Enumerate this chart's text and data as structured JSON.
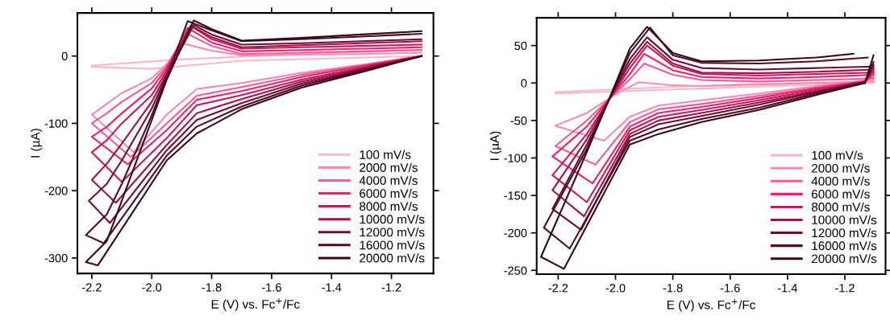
{
  "chart_data": [
    {
      "type": "line",
      "xlabel": "E (V) vs. Fc$^{+}$/Fc",
      "ylabel": "I (µA)",
      "xlim": [
        -2.248,
        -1.06
      ],
      "ylim": [
        -323,
        64
      ],
      "xticks": [
        -2.2,
        {
          "value": -2.0,
          "label": "-2.0"
        },
        -1.8,
        -1.6,
        -1.4,
        -1.2
      ],
      "yticks": [
        0,
        -100,
        -200,
        -300
      ],
      "legend": "bottom right",
      "series": [
        {
          "name": "100 mV/s",
          "color": "#f9b8cf",
          "x": [
            -1.1,
            -1.7,
            -2.0,
            -2.2,
            -2.2,
            -1.9,
            -1.5,
            -1.1
          ],
          "values": [
            0,
            -7,
            -19,
            -16,
            -14,
            -5,
            3,
            9
          ]
        },
        {
          "name": "2000 mV/s",
          "color": "#f58bb0",
          "x": [
            -1.1,
            -1.3,
            -1.5,
            -1.7,
            -1.85,
            -1.95,
            -2.06,
            -2.2,
            -2.15,
            -2.1,
            -2.0,
            -1.95,
            -1.9,
            -1.8,
            -1.7,
            -1.5,
            -1.3,
            -1.1
          ],
          "values": [
            0,
            -13,
            -25,
            -40,
            -49,
            -87,
            -143,
            -87,
            -71,
            -55,
            -33,
            -12,
            19,
            8,
            1,
            2,
            3,
            5
          ]
        },
        {
          "name": "4000 mV/s",
          "color": "#f45a95",
          "x": [
            -1.1,
            -1.3,
            -1.5,
            -1.7,
            -1.85,
            -1.95,
            -2.07,
            -2.2,
            -2.15,
            -2.1,
            -2.0,
            -1.95,
            -1.88,
            -1.8,
            -1.7,
            -1.5,
            -1.3,
            -1.1
          ],
          "values": [
            0,
            -14,
            -28,
            -46,
            -59,
            -100,
            -150,
            -100,
            -85,
            -68,
            -40,
            -15,
            33,
            15,
            3,
            5,
            7,
            9
          ]
        },
        {
          "name": "6000 mV/s",
          "color": "#ee1f73",
          "x": [
            -1.1,
            -1.3,
            -1.5,
            -1.7,
            -1.85,
            -1.95,
            -2.08,
            -2.2,
            -2.15,
            -2.1,
            -2.0,
            -1.95,
            -1.88,
            -1.8,
            -1.7,
            -1.5,
            -1.3,
            -1.1
          ],
          "values": [
            0,
            -15,
            -31,
            -52,
            -65,
            -110,
            -161,
            -120,
            -105,
            -85,
            -48,
            -18,
            42,
            20,
            7,
            9,
            11,
            13
          ]
        },
        {
          "name": "8000 mV/s",
          "color": "#c9165c",
          "x": [
            -1.1,
            -1.3,
            -1.5,
            -1.7,
            -1.85,
            -1.95,
            -2.1,
            -2.2,
            -2.15,
            -2.1,
            -2.0,
            -1.95,
            -1.87,
            -1.8,
            -1.7,
            -1.5,
            -1.3,
            -1.1
          ],
          "values": [
            0,
            -17,
            -35,
            -58,
            -73,
            -122,
            -187,
            -143,
            -125,
            -100,
            -58,
            -22,
            45,
            25,
            11,
            13,
            15,
            17
          ]
        },
        {
          "name": "10000 mV/s",
          "color": "#9e1248",
          "x": [
            -1.1,
            -1.3,
            -1.5,
            -1.7,
            -1.85,
            -1.95,
            -2.12,
            -2.2,
            -2.15,
            -2.1,
            -2.0,
            -1.95,
            -1.87,
            -1.8,
            -1.7,
            -1.5,
            -1.3,
            -1.1
          ],
          "values": [
            0,
            -19,
            -38,
            -64,
            -85,
            -132,
            -218,
            -184,
            -160,
            -130,
            -68,
            -26,
            45,
            28,
            13,
            16,
            19,
            22
          ]
        },
        {
          "name": "12000 mV/s",
          "color": "#700c33",
          "x": [
            -1.1,
            -1.3,
            -1.5,
            -1.7,
            -1.85,
            -1.95,
            -2.14,
            -2.21,
            -2.15,
            -2.1,
            -2.0,
            -1.95,
            -1.86,
            -1.8,
            -1.7,
            -1.5,
            -1.3,
            -1.1
          ],
          "values": [
            0,
            -21,
            -41,
            -70,
            -95,
            -140,
            -248,
            -215,
            -190,
            -155,
            -78,
            -29,
            46,
            32,
            17,
            19,
            22,
            25
          ]
        },
        {
          "name": "16000 mV/s",
          "color": "#4f0a26",
          "x": [
            -1.1,
            -1.3,
            -1.5,
            -1.7,
            -1.85,
            -1.95,
            -2.16,
            -2.22,
            -2.15,
            -2.1,
            -2.0,
            -1.95,
            -1.88,
            -1.8,
            -1.7,
            -1.5,
            -1.3,
            -1.1
          ],
          "values": [
            0,
            -22,
            -44,
            -75,
            -105,
            -148,
            -278,
            -266,
            -235,
            -190,
            -88,
            -32,
            52,
            38,
            22,
            25,
            29,
            33
          ]
        },
        {
          "name": "20000 mV/s",
          "color": "#35061a",
          "x": [
            -1.1,
            -1.3,
            -1.5,
            -1.7,
            -1.85,
            -1.95,
            -2.18,
            -2.22,
            -2.15,
            -2.1,
            -2.0,
            -1.95,
            -1.86,
            -1.8,
            -1.7,
            -1.5,
            -1.3,
            -1.1
          ],
          "values": [
            0,
            -24,
            -47,
            -79,
            -115,
            -155,
            -311,
            -306,
            -275,
            -215,
            -95,
            -35,
            53,
            40,
            23,
            27,
            32,
            37
          ]
        }
      ]
    },
    {
      "type": "line",
      "xlabel": "E (V) vs. Fc$^{+}$/Fc",
      "ylabel": "I (µA)",
      "xlim": [
        -2.275,
        -1.058
      ],
      "ylim": [
        -255,
        87
      ],
      "xticks": [
        -2.2,
        {
          "value": -2.0,
          "label": "-2.0"
        },
        -1.8,
        -1.6,
        -1.4,
        -1.2
      ],
      "yticks": [
        50,
        0,
        -50,
        -100,
        -150,
        -200,
        -250
      ],
      "legend": "bottom right",
      "series": [
        {
          "name": "100 mV/s",
          "color": "#f9b8cf",
          "x": [
            -1.1,
            -1.6,
            -2.21,
            -2.21,
            -1.8,
            -1.5,
            -1.1
          ],
          "values": [
            0,
            -6,
            -14,
            -12,
            -5,
            -1,
            2
          ]
        },
        {
          "name": "2000 mV/s",
          "color": "#f58bb0",
          "x": [
            -1.1,
            -1.13,
            -1.3,
            -1.5,
            -1.7,
            -1.85,
            -1.95,
            -2.04,
            -2.21,
            -2.1,
            -2.0,
            -1.95,
            -1.92,
            -1.8,
            -1.7,
            -1.5,
            -1.3,
            -1.1
          ],
          "values": [
            3,
            3,
            -4,
            -14,
            -23,
            -30,
            -45,
            -77,
            -57,
            -40,
            -15,
            -5,
            1,
            -3,
            -4,
            -2,
            0,
            2
          ]
        },
        {
          "name": "4000 mV/s",
          "color": "#f45a95",
          "x": [
            -1.1,
            -1.13,
            -1.3,
            -1.5,
            -1.7,
            -1.85,
            -1.95,
            -2.07,
            -2.21,
            -2.1,
            -2.0,
            -1.95,
            -1.9,
            -1.8,
            -1.7,
            -1.5,
            -1.3,
            -1.1
          ],
          "values": [
            8,
            3,
            -6,
            -17,
            -28,
            -35,
            -52,
            -109,
            -84,
            -50,
            -13,
            5,
            26,
            11,
            4,
            2,
            4,
            6
          ]
        },
        {
          "name": "6000 mV/s",
          "color": "#ee1f73",
          "x": [
            -1.1,
            -1.13,
            -1.3,
            -1.5,
            -1.7,
            -1.85,
            -1.95,
            -2.08,
            -2.22,
            -2.1,
            -2.0,
            -1.95,
            -1.9,
            -1.8,
            -1.7,
            -1.5,
            -1.3,
            -1.1
          ],
          "values": [
            12,
            2,
            -7,
            -20,
            -32,
            -40,
            -58,
            -134,
            -98,
            -58,
            -11,
            12,
            39,
            17,
            8,
            6,
            8,
            11
          ]
        },
        {
          "name": "8000 mV/s",
          "color": "#c9165c",
          "x": [
            -1.1,
            -1.13,
            -1.3,
            -1.5,
            -1.7,
            -1.85,
            -1.95,
            -2.1,
            -2.22,
            -2.1,
            -2.0,
            -1.95,
            -1.89,
            -1.8,
            -1.7,
            -1.5,
            -1.3,
            -1.1
          ],
          "values": [
            16,
            2,
            -9,
            -23,
            -36,
            -45,
            -63,
            -159,
            -123,
            -68,
            -9,
            20,
            50,
            23,
            12,
            10,
            12,
            14
          ]
        },
        {
          "name": "10000 mV/s",
          "color": "#9e1248",
          "x": [
            -1.1,
            -1.13,
            -1.3,
            -1.5,
            -1.7,
            -1.85,
            -1.95,
            -2.11,
            -2.22,
            -2.1,
            -2.0,
            -1.95,
            -1.89,
            -1.8,
            -1.7,
            -1.5,
            -1.3,
            -1.1
          ],
          "values": [
            20,
            1,
            -11,
            -26,
            -40,
            -50,
            -68,
            -178,
            -143,
            -75,
            -7,
            26,
            55,
            26,
            14,
            13,
            15,
            18
          ]
        },
        {
          "name": "12000 mV/s",
          "color": "#700c33",
          "x": [
            -1.1,
            -1.13,
            -1.3,
            -1.5,
            -1.7,
            -1.85,
            -1.95,
            -2.12,
            -2.22,
            -2.1,
            -2.0,
            -1.95,
            -1.89,
            -1.8,
            -1.7,
            -1.5,
            -1.3,
            -1.1
          ],
          "values": [
            24,
            1,
            -12,
            -29,
            -44,
            -55,
            -72,
            -196,
            -168,
            -82,
            -5,
            32,
            61,
            31,
            20,
            18,
            20,
            22
          ]
        },
        {
          "name": "16000 mV/s",
          "color": "#4f0a26",
          "x": [
            -1.1,
            -1.13,
            -1.3,
            -1.5,
            -1.7,
            -1.85,
            -1.95,
            -2.16,
            -2.25,
            -2.1,
            -2.0,
            -1.95,
            -1.88,
            -1.8,
            -1.7,
            -1.5,
            -1.3,
            -1.12
          ],
          "values": [
            28,
            0,
            -14,
            -33,
            -48,
            -62,
            -77,
            -221,
            -193,
            -88,
            -3,
            40,
            74,
            37,
            27,
            26,
            29,
            34
          ]
        },
        {
          "name": "20000 mV/s",
          "color": "#35061a",
          "x": [
            -1.1,
            -1.13,
            -1.3,
            -1.5,
            -1.7,
            -1.85,
            -1.95,
            -2.18,
            -2.26,
            -2.1,
            -2.0,
            -1.95,
            -1.89,
            -1.8,
            -1.7,
            -1.5,
            -1.3,
            -1.17
          ],
          "values": [
            37,
            0,
            -16,
            -36,
            -52,
            -68,
            -82,
            -248,
            -232,
            -92,
            -1,
            46,
            75,
            40,
            29,
            30,
            34,
            39
          ]
        }
      ]
    }
  ]
}
